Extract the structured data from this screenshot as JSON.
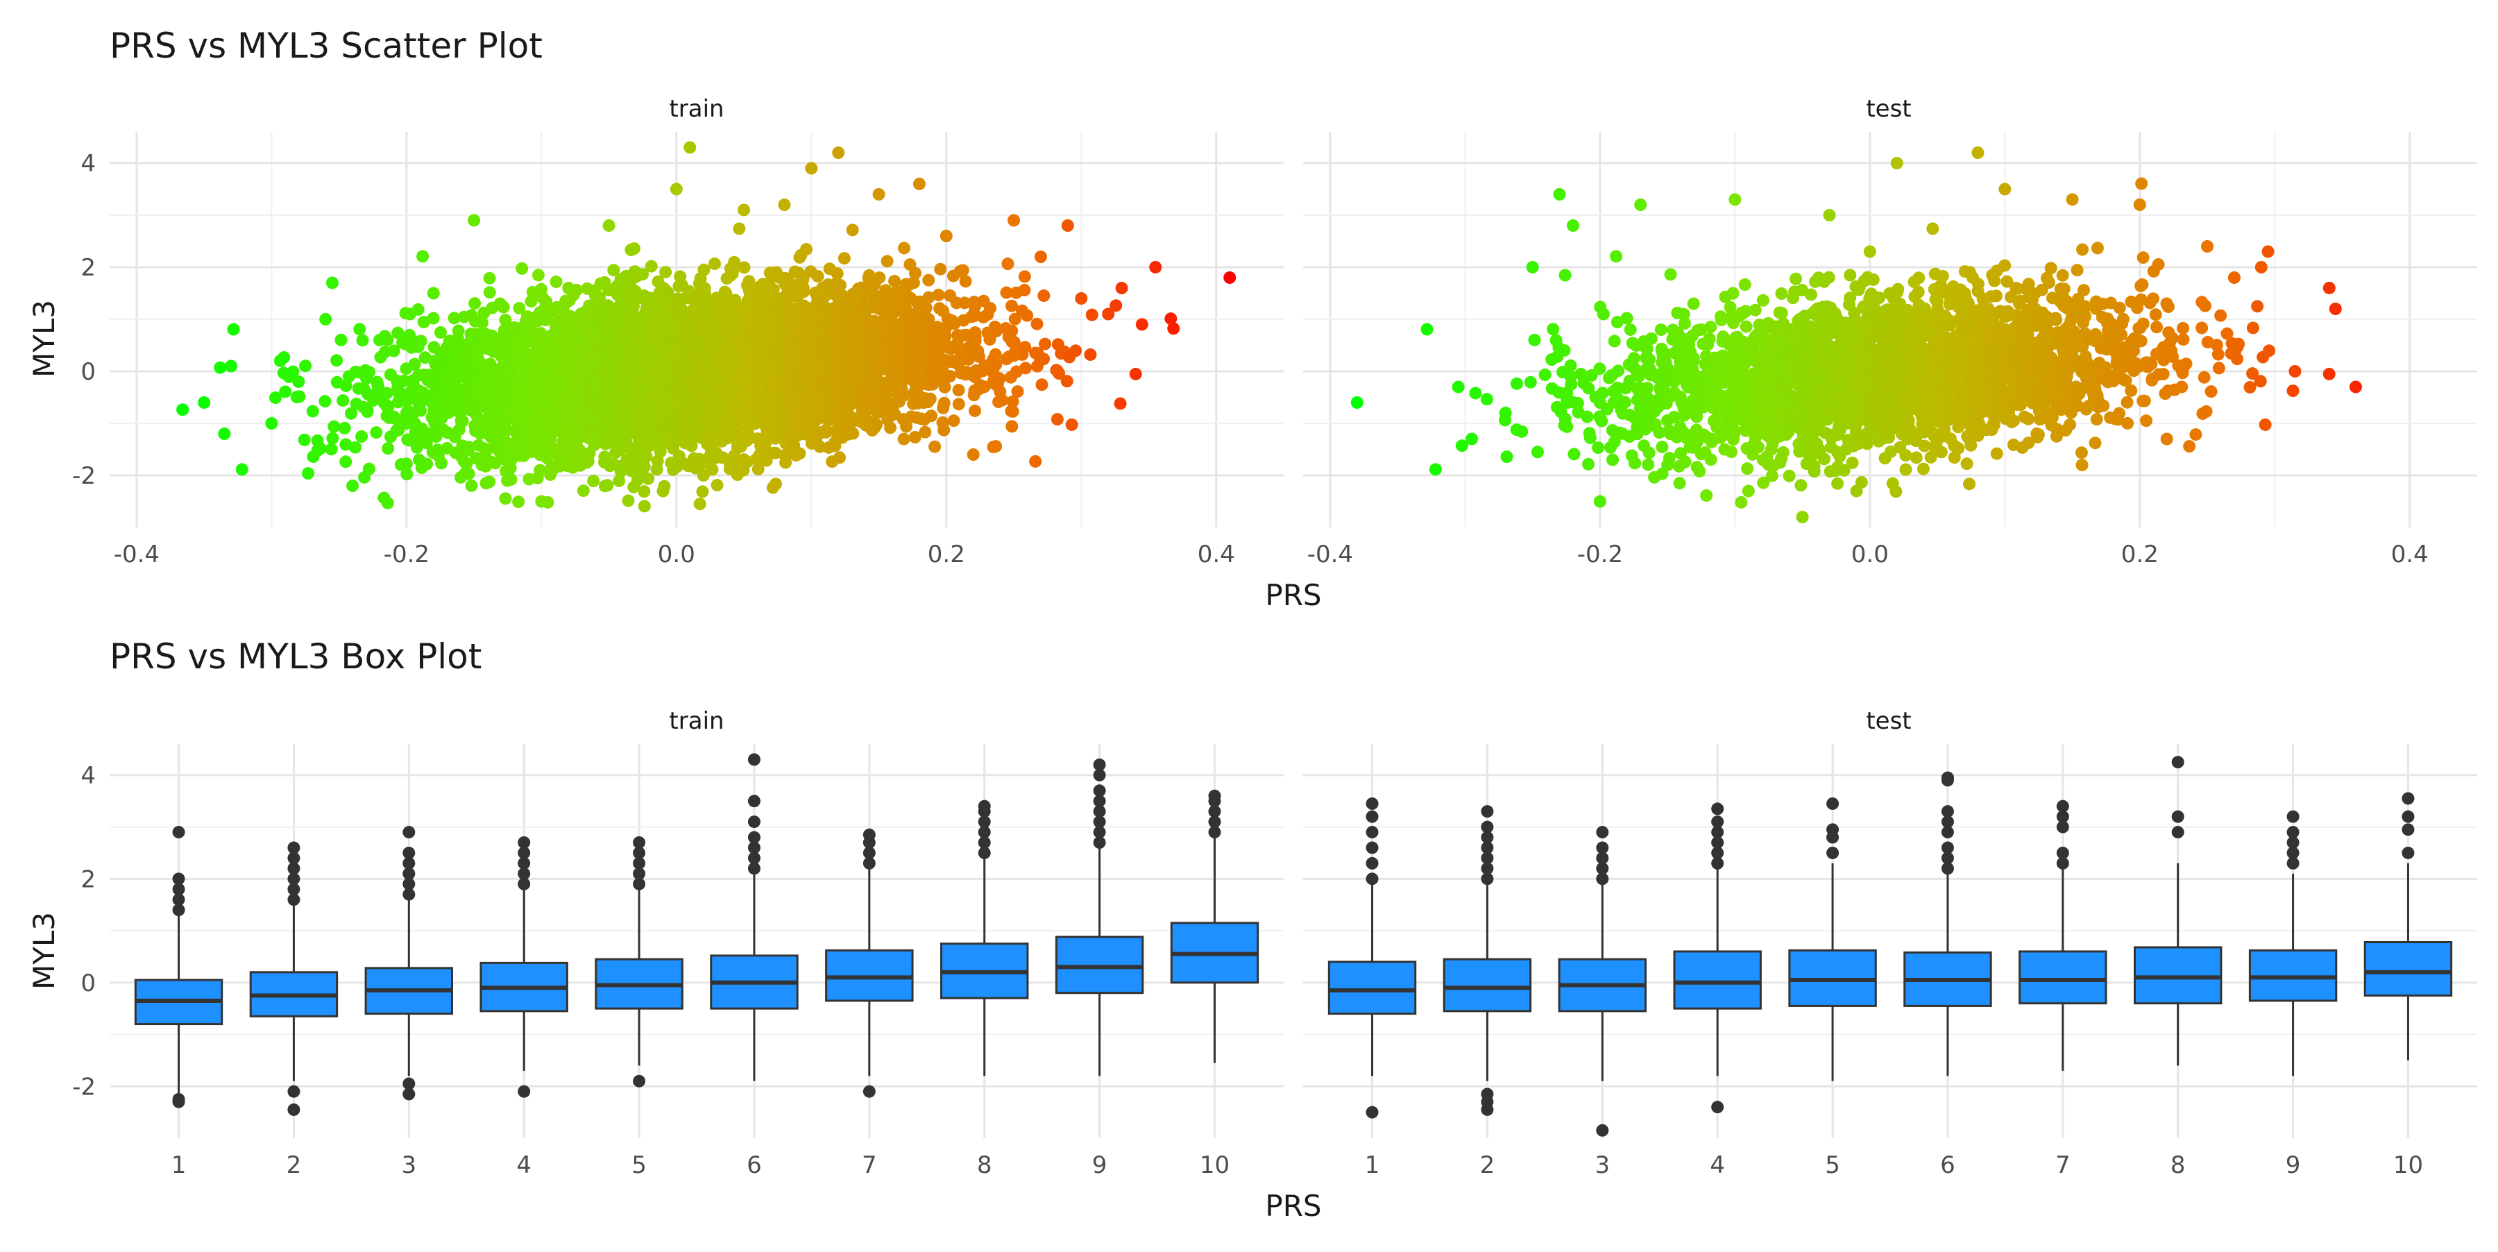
{
  "chart_data": [
    {
      "type": "scatter",
      "title": "PRS vs MYL3 Scatter Plot",
      "xlabel": "PRS",
      "ylabel": "MYL3",
      "facets": [
        "train",
        "test"
      ],
      "xlim": [
        -0.42,
        0.45
      ],
      "ylim": [
        -3.0,
        4.6
      ],
      "xticks": [
        -0.4,
        -0.2,
        0.0,
        0.2,
        0.4
      ],
      "xtick_labels": [
        "-0.4",
        "-0.2",
        "0.0",
        "0.2",
        "0.4"
      ],
      "yticks": [
        -2,
        0,
        2,
        4
      ],
      "ytick_labels": [
        "-2",
        "0",
        "2",
        "4"
      ],
      "grid": true,
      "color_scale": {
        "by": "PRS",
        "low": "#00ff00",
        "high": "#ff0000"
      },
      "series": [
        {
          "facet": "train",
          "x": [
            -0.35,
            -0.335,
            -0.33,
            -0.3,
            -0.28,
            -0.26,
            -0.255,
            -0.24,
            -0.22,
            -0.2,
            -0.18,
            -0.15,
            -0.1,
            -0.08,
            -0.05,
            0.0,
            0.01,
            0.02,
            0.05,
            0.08,
            0.1,
            0.12,
            0.15,
            0.18,
            0.2,
            0.22,
            0.25,
            0.27,
            0.29,
            0.3,
            0.32,
            0.33,
            0.345,
            0.355,
            0.41,
            -0.2,
            -0.1,
            0.0,
            0.1,
            0.2,
            -0.15,
            -0.05,
            0.05,
            0.15,
            0.25
          ],
          "y": [
            -0.6,
            -1.2,
            0.1,
            -1.0,
            -0.2,
            1.0,
            1.7,
            -2.2,
            0.6,
            -1.0,
            1.5,
            2.9,
            -2.5,
            1.6,
            2.8,
            3.5,
            4.3,
            -2.0,
            3.1,
            3.2,
            3.9,
            4.2,
            3.4,
            3.6,
            2.6,
            -1.6,
            2.9,
            2.2,
            2.8,
            1.4,
            1.1,
            1.6,
            0.9,
            2.0,
            1.8,
            -0.8,
            -0.3,
            0.4,
            0.8,
            0.5,
            -0.6,
            0.1,
            0.6,
            1.2,
            0.3
          ]
        },
        {
          "facet": "test",
          "x": [
            -0.38,
            -0.305,
            -0.295,
            -0.27,
            -0.25,
            -0.23,
            -0.22,
            -0.2,
            -0.17,
            -0.15,
            -0.1,
            -0.09,
            -0.05,
            -0.03,
            0.0,
            0.02,
            0.08,
            0.1,
            0.15,
            0.2,
            0.22,
            0.25,
            0.27,
            0.29,
            0.295,
            0.315,
            0.345,
            0.36,
            -0.2,
            -0.1,
            0.0,
            0.1,
            0.2
          ],
          "y": [
            -0.6,
            -0.3,
            -1.3,
            -0.8,
            2.0,
            3.4,
            2.8,
            -2.5,
            3.2,
            -1.8,
            3.3,
            -2.3,
            -2.8,
            3.0,
            2.3,
            4.0,
            4.2,
            3.5,
            3.3,
            3.2,
            -1.3,
            2.4,
            1.8,
            2.0,
            2.3,
            0.0,
            1.2,
            -0.3,
            -0.6,
            0.0,
            0.2,
            0.4,
            0.1
          ]
        }
      ]
    },
    {
      "type": "box",
      "title": "PRS vs MYL3 Box Plot",
      "xlabel": "PRS",
      "ylabel": "MYL3",
      "facets": [
        "train",
        "test"
      ],
      "categories": [
        "1",
        "2",
        "3",
        "4",
        "5",
        "6",
        "7",
        "8",
        "9",
        "10"
      ],
      "ylim": [
        -3.0,
        4.6
      ],
      "yticks": [
        -2,
        0,
        2,
        4
      ],
      "ytick_labels": [
        "-2",
        "0",
        "2",
        "4"
      ],
      "grid": true,
      "fill_color": "#1e90ff",
      "series": [
        {
          "facet": "train",
          "boxes": [
            {
              "lower": -2.2,
              "q1": -0.8,
              "median": -0.35,
              "q3": 0.05,
              "upper": 1.3,
              "outliers": [
                -2.25,
                -2.3,
                1.4,
                1.6,
                1.8,
                2.0,
                2.9
              ]
            },
            {
              "lower": -1.9,
              "q1": -0.65,
              "median": -0.25,
              "q3": 0.2,
              "upper": 1.5,
              "outliers": [
                -2.1,
                -2.45,
                1.6,
                1.8,
                2.0,
                2.2,
                2.4,
                2.6
              ]
            },
            {
              "lower": -1.8,
              "q1": -0.6,
              "median": -0.15,
              "q3": 0.28,
              "upper": 1.6,
              "outliers": [
                -1.95,
                -2.15,
                1.7,
                1.9,
                2.1,
                2.3,
                2.5,
                2.9
              ]
            },
            {
              "lower": -1.7,
              "q1": -0.55,
              "median": -0.1,
              "q3": 0.38,
              "upper": 1.8,
              "outliers": [
                -2.1,
                1.9,
                2.1,
                2.3,
                2.5,
                2.7
              ]
            },
            {
              "lower": -1.6,
              "q1": -0.5,
              "median": -0.05,
              "q3": 0.45,
              "upper": 1.8,
              "outliers": [
                -1.9,
                1.9,
                2.1,
                2.3,
                2.5,
                2.7
              ]
            },
            {
              "lower": -1.9,
              "q1": -0.5,
              "median": 0.0,
              "q3": 0.52,
              "upper": 2.1,
              "outliers": [
                2.2,
                2.4,
                2.6,
                2.8,
                3.1,
                3.5,
                4.3
              ]
            },
            {
              "lower": -1.8,
              "q1": -0.35,
              "median": 0.1,
              "q3": 0.62,
              "upper": 2.2,
              "outliers": [
                -2.1,
                2.3,
                2.5,
                2.7,
                2.85
              ]
            },
            {
              "lower": -1.8,
              "q1": -0.3,
              "median": 0.2,
              "q3": 0.75,
              "upper": 2.4,
              "outliers": [
                2.5,
                2.7,
                2.9,
                3.1,
                3.3,
                3.4
              ]
            },
            {
              "lower": -1.8,
              "q1": -0.2,
              "median": 0.3,
              "q3": 0.88,
              "upper": 2.6,
              "outliers": [
                2.7,
                2.9,
                3.1,
                3.3,
                3.5,
                3.7,
                4.0,
                4.2
              ]
            },
            {
              "lower": -1.55,
              "q1": 0.0,
              "median": 0.55,
              "q3": 1.15,
              "upper": 2.8,
              "outliers": [
                2.9,
                3.1,
                3.3,
                3.5,
                3.6
              ]
            }
          ]
        },
        {
          "facet": "test",
          "boxes": [
            {
              "lower": -1.8,
              "q1": -0.6,
              "median": -0.15,
              "q3": 0.4,
              "upper": 1.9,
              "outliers": [
                -2.5,
                2.0,
                2.3,
                2.6,
                2.9,
                3.2,
                3.45
              ]
            },
            {
              "lower": -1.9,
              "q1": -0.55,
              "median": -0.1,
              "q3": 0.45,
              "upper": 1.9,
              "outliers": [
                -2.15,
                -2.3,
                -2.45,
                2.0,
                2.2,
                2.4,
                2.6,
                2.8,
                3.0,
                3.3
              ]
            },
            {
              "lower": -1.9,
              "q1": -0.55,
              "median": -0.05,
              "q3": 0.45,
              "upper": 1.9,
              "outliers": [
                -2.85,
                2.0,
                2.2,
                2.4,
                2.6,
                2.9
              ]
            },
            {
              "lower": -1.8,
              "q1": -0.5,
              "median": 0.0,
              "q3": 0.6,
              "upper": 2.2,
              "outliers": [
                -2.4,
                2.3,
                2.5,
                2.7,
                2.9,
                3.1,
                3.35
              ]
            },
            {
              "lower": -1.9,
              "q1": -0.45,
              "median": 0.05,
              "q3": 0.62,
              "upper": 2.3,
              "outliers": [
                2.5,
                2.8,
                2.95,
                3.45
              ]
            },
            {
              "lower": -1.8,
              "q1": -0.45,
              "median": 0.05,
              "q3": 0.58,
              "upper": 2.1,
              "outliers": [
                2.2,
                2.4,
                2.6,
                2.9,
                3.1,
                3.3,
                3.9,
                3.95
              ]
            },
            {
              "lower": -1.7,
              "q1": -0.4,
              "median": 0.05,
              "q3": 0.6,
              "upper": 2.2,
              "outliers": [
                2.3,
                2.5,
                3.0,
                3.2,
                3.4
              ]
            },
            {
              "lower": -1.6,
              "q1": -0.4,
              "median": 0.1,
              "q3": 0.68,
              "upper": 2.3,
              "outliers": [
                2.9,
                3.2,
                4.25
              ]
            },
            {
              "lower": -1.8,
              "q1": -0.35,
              "median": 0.1,
              "q3": 0.62,
              "upper": 2.1,
              "outliers": [
                2.3,
                2.5,
                2.7,
                2.9,
                3.2
              ]
            },
            {
              "lower": -1.5,
              "q1": -0.25,
              "median": 0.2,
              "q3": 0.78,
              "upper": 2.3,
              "outliers": [
                2.5,
                2.95,
                3.2,
                3.55
              ]
            }
          ]
        }
      ]
    }
  ]
}
